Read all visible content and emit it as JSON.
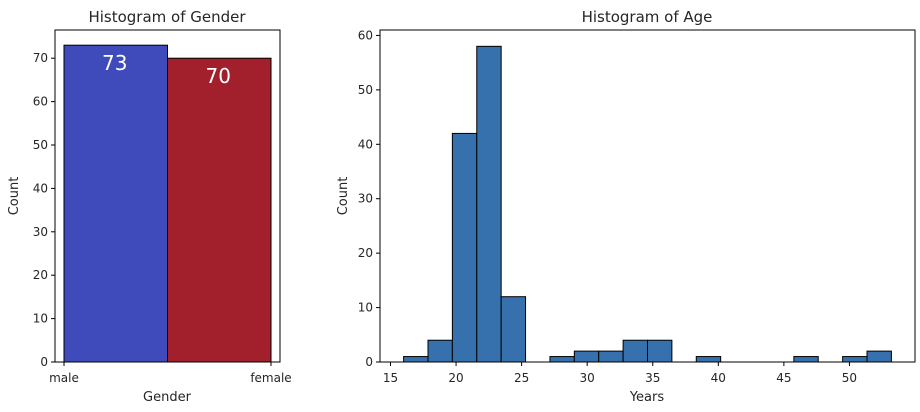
{
  "chart_data": [
    {
      "type": "bar",
      "title": "Histogram of Gender",
      "xlabel": "Gender",
      "ylabel": "Count",
      "categories": [
        "male",
        "female"
      ],
      "values": [
        73,
        70
      ],
      "data_labels": [
        "73",
        "70"
      ],
      "colors": [
        "#3f4bba",
        "#a1202c"
      ],
      "ylim": [
        0,
        76.5
      ],
      "yticks": [
        0,
        10,
        20,
        30,
        40,
        50,
        60,
        70
      ],
      "grid": false
    },
    {
      "type": "bar",
      "title": "Histogram of Age",
      "xlabel": "Years",
      "ylabel": "Count",
      "bin_edges": [
        16,
        17.86,
        19.72,
        21.58,
        23.44,
        25.3,
        27.16,
        29.02,
        30.88,
        32.74,
        34.6,
        36.46,
        38.32,
        40.18,
        42.04,
        43.9,
        45.76,
        47.62,
        49.48,
        51.34,
        53.2
      ],
      "values": [
        1,
        4,
        42,
        58,
        12,
        0,
        1,
        2,
        2,
        4,
        4,
        0,
        1,
        0,
        0,
        0,
        1,
        0,
        1,
        2
      ],
      "color": "#3670ad",
      "xlim": [
        14.2,
        55.0
      ],
      "xticks": [
        15,
        20,
        25,
        30,
        35,
        40,
        45,
        50
      ],
      "ylim": [
        0,
        61
      ],
      "yticks": [
        0,
        10,
        20,
        30,
        40,
        50,
        60
      ],
      "grid": false
    }
  ]
}
